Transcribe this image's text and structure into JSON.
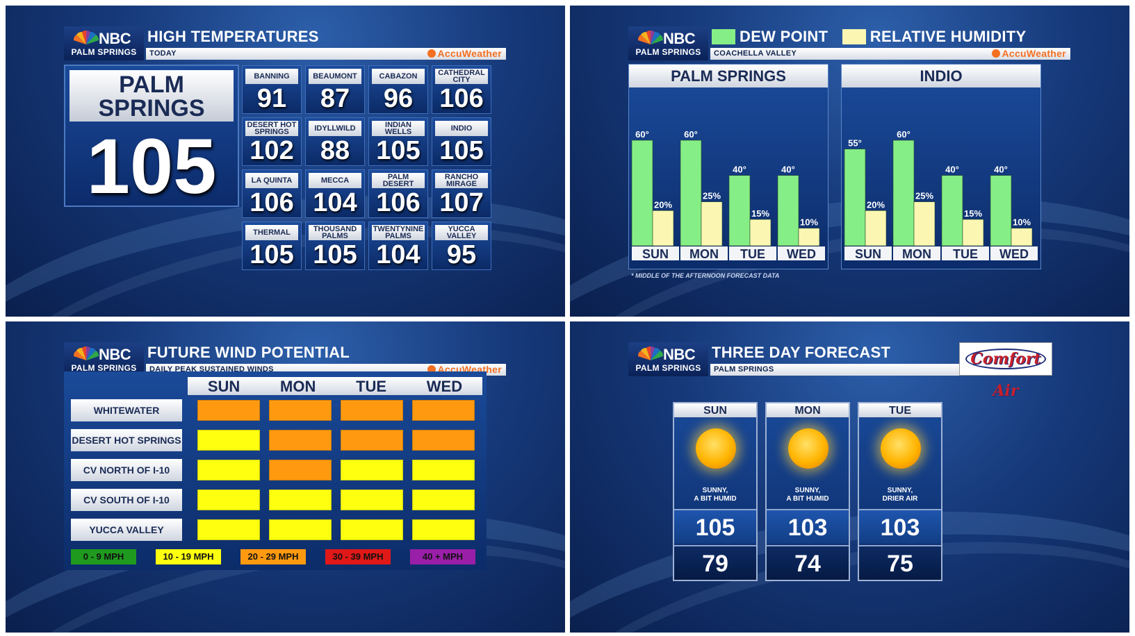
{
  "brand": {
    "network": "NBC",
    "station": "PALM SPRINGS",
    "provider": "AccuWeather"
  },
  "high_temps": {
    "title": "HIGH TEMPERATURES",
    "subtitle": "TODAY",
    "featured": {
      "city_line1": "PALM",
      "city_line2": "SPRINGS",
      "temp": "105"
    },
    "cities": [
      {
        "name": "BANNING",
        "temp": "91"
      },
      {
        "name": "BEAUMONT",
        "temp": "87"
      },
      {
        "name": "CABAZON",
        "temp": "96"
      },
      {
        "name": "CATHEDRAL CITY",
        "temp": "106"
      },
      {
        "name": "DESERT HOT SPRINGS",
        "temp": "102"
      },
      {
        "name": "IDYLLWILD",
        "temp": "88"
      },
      {
        "name": "INDIAN WELLS",
        "temp": "105"
      },
      {
        "name": "INDIO",
        "temp": "105"
      },
      {
        "name": "LA QUINTA",
        "temp": "106"
      },
      {
        "name": "MECCA",
        "temp": "104"
      },
      {
        "name": "PALM DESERT",
        "temp": "106"
      },
      {
        "name": "RANCHO MIRAGE",
        "temp": "107"
      },
      {
        "name": "THERMAL",
        "temp": "105"
      },
      {
        "name": "THOUSAND PALMS",
        "temp": "105"
      },
      {
        "name": "TWENTYNINE PALMS",
        "temp": "104"
      },
      {
        "name": "YUCCA VALLEY",
        "temp": "95"
      }
    ]
  },
  "humidity": {
    "legend_dew": "DEW POINT",
    "legend_rh": "RELATIVE HUMIDITY",
    "subtitle": "COACHELLA VALLEY",
    "footnote": "* MIDDLE OF THE AFTERNOON FORECAST DATA",
    "colors": {
      "dew": "#86ee86",
      "rh": "#fbf7b2"
    }
  },
  "chart_data": [
    {
      "type": "bar",
      "title": "PALM SPRINGS",
      "categories": [
        "SUN",
        "MON",
        "TUE",
        "WED"
      ],
      "series": [
        {
          "name": "DEW POINT",
          "values": [
            60,
            60,
            40,
            40
          ],
          "labels": [
            "60°",
            "60°",
            "40°",
            "40°"
          ]
        },
        {
          "name": "RELATIVE HUMIDITY",
          "values": [
            20,
            25,
            15,
            10
          ],
          "labels": [
            "20%",
            "25%",
            "15%",
            "10%"
          ]
        }
      ],
      "ylim": [
        0,
        75
      ]
    },
    {
      "type": "bar",
      "title": "INDIO",
      "categories": [
        "SUN",
        "MON",
        "TUE",
        "WED"
      ],
      "series": [
        {
          "name": "DEW POINT",
          "values": [
            55,
            60,
            40,
            40
          ],
          "labels": [
            "55°",
            "60°",
            "40°",
            "40°"
          ]
        },
        {
          "name": "RELATIVE HUMIDITY",
          "values": [
            20,
            25,
            15,
            10
          ],
          "labels": [
            "20%",
            "25%",
            "15%",
            "10%"
          ]
        }
      ],
      "ylim": [
        0,
        75
      ]
    }
  ],
  "wind": {
    "title": "FUTURE WIND POTENTIAL",
    "subtitle": "DAILY PEAK SUSTAINED WINDS",
    "days": [
      "SUN",
      "MON",
      "TUE",
      "WED"
    ],
    "rows": [
      {
        "name": "WHITEWATER",
        "levels": [
          2,
          2,
          2,
          2
        ]
      },
      {
        "name": "DESERT HOT SPRINGS",
        "levels": [
          1,
          2,
          2,
          2
        ]
      },
      {
        "name": "CV NORTH OF I-10",
        "levels": [
          1,
          2,
          1,
          1
        ]
      },
      {
        "name": "CV SOUTH OF I-10",
        "levels": [
          1,
          1,
          1,
          1
        ]
      },
      {
        "name": "YUCCA VALLEY",
        "levels": [
          1,
          1,
          1,
          1
        ]
      }
    ],
    "legend": [
      {
        "label": "0 - 9 MPH",
        "color": "#1f9a1f"
      },
      {
        "label": "10 - 19 MPH",
        "color": "#ffff10"
      },
      {
        "label": "20 - 29 MPH",
        "color": "#ff9a10"
      },
      {
        "label": "30 - 39 MPH",
        "color": "#e01818"
      },
      {
        "label": "40 + MPH",
        "color": "#9a1fa8"
      }
    ]
  },
  "forecast": {
    "title": "THREE DAY FORECAST",
    "subtitle": "PALM SPRINGS",
    "sponsor": "Comfort Air",
    "days": [
      {
        "day": "SUN",
        "icon": "sun-icon",
        "desc1": "SUNNY,",
        "desc2": "A BIT HUMID",
        "high": "105",
        "low": "79"
      },
      {
        "day": "MON",
        "icon": "sun-icon",
        "desc1": "SUNNY,",
        "desc2": "A BIT HUMID",
        "high": "103",
        "low": "74"
      },
      {
        "day": "TUE",
        "icon": "sun-icon",
        "desc1": "SUNNY,",
        "desc2": "DRIER AIR",
        "high": "103",
        "low": "75"
      }
    ]
  }
}
